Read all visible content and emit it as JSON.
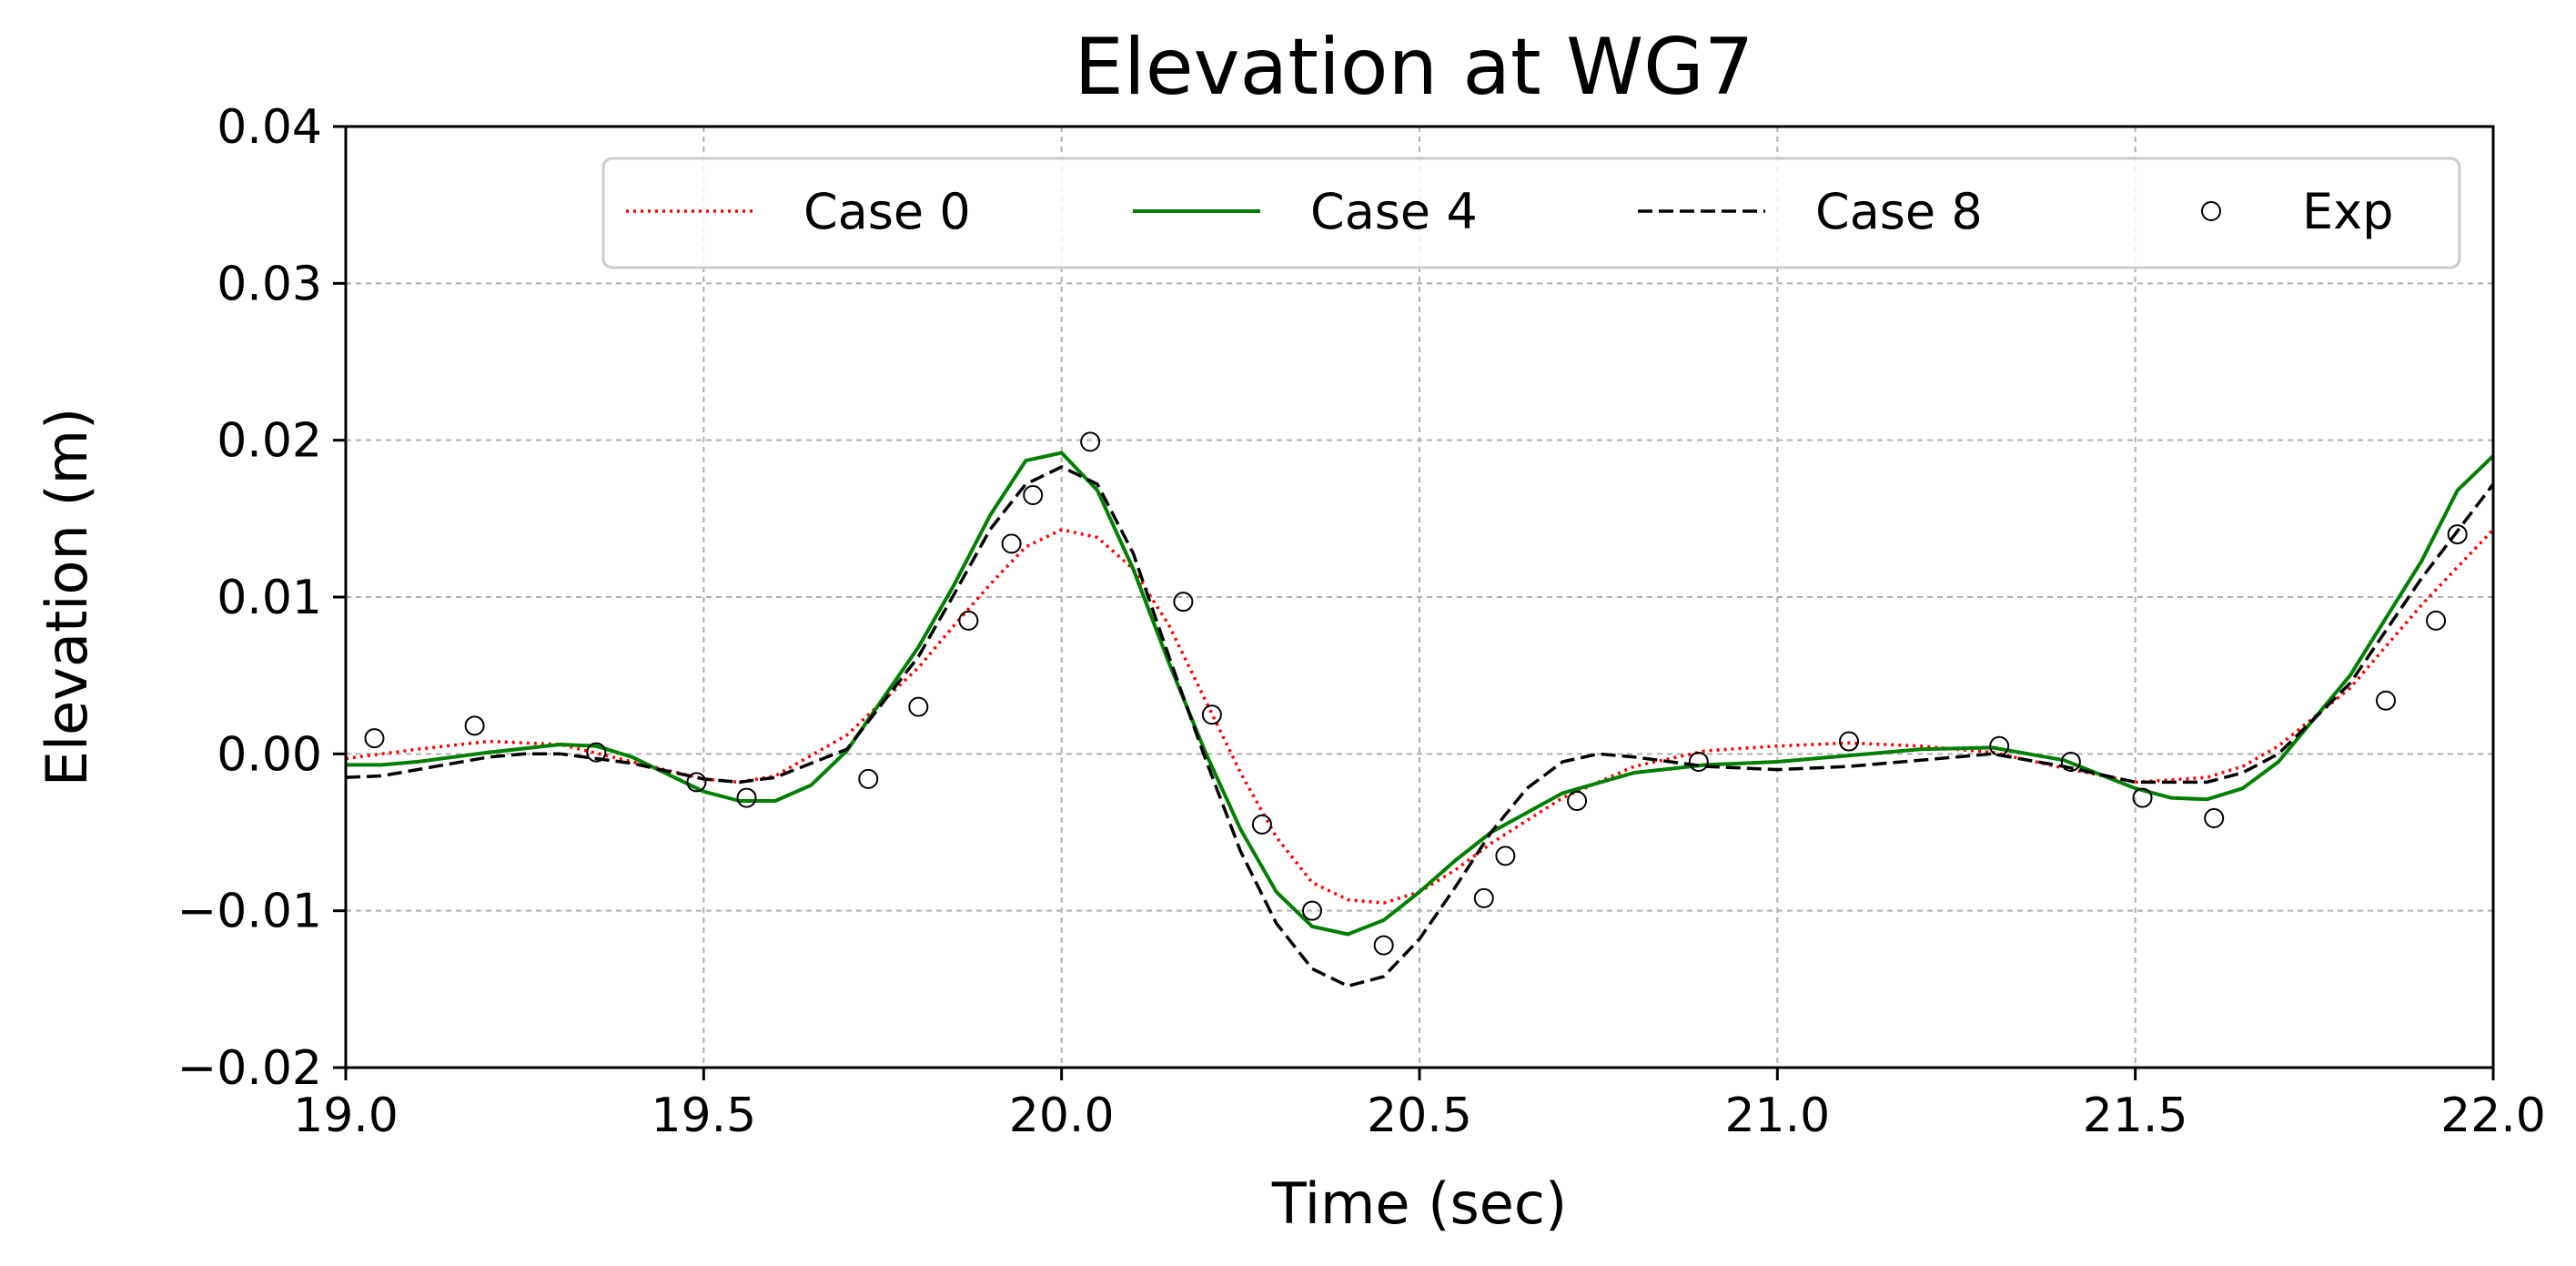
{
  "chart_data": {
    "type": "line",
    "title": "Elevation at WG7",
    "xlabel": "Time (sec)",
    "ylabel": "Elevation (m)",
    "xlim": [
      19.0,
      22.0
    ],
    "ylim": [
      -0.02,
      0.04
    ],
    "xticks": [
      19.0,
      19.5,
      20.0,
      20.5,
      21.0,
      21.5,
      22.0
    ],
    "xtick_labels": [
      "19.0",
      "19.5",
      "20.0",
      "20.5",
      "21.0",
      "21.5",
      "22.0"
    ],
    "yticks": [
      -0.02,
      -0.01,
      0.0,
      0.01,
      0.02,
      0.03,
      0.04
    ],
    "ytick_labels": [
      "−0.02",
      "−0.01",
      "0.00",
      "0.01",
      "0.02",
      "0.03",
      "0.04"
    ],
    "grid": true,
    "legend_position": "top-right",
    "series": [
      {
        "name": "Case 0",
        "style": "dotted",
        "color": "#ff0000",
        "x": [
          19.0,
          19.1,
          19.2,
          19.3,
          19.4,
          19.5,
          19.55,
          19.6,
          19.7,
          19.8,
          19.85,
          19.9,
          19.95,
          20.0,
          20.05,
          20.1,
          20.15,
          20.2,
          20.25,
          20.3,
          20.35,
          20.4,
          20.45,
          20.5,
          20.55,
          20.6,
          20.7,
          20.8,
          20.9,
          21.0,
          21.1,
          21.2,
          21.3,
          21.4,
          21.5,
          21.6,
          21.65,
          21.7,
          21.8,
          21.9,
          22.0
        ],
        "y": [
          -0.0003,
          0.0003,
          0.0008,
          0.0006,
          -0.0005,
          -0.0016,
          -0.0018,
          -0.0014,
          0.0012,
          0.0055,
          0.0082,
          0.0108,
          0.0132,
          0.0143,
          0.0138,
          0.0118,
          0.0082,
          0.0035,
          -0.0012,
          -0.0053,
          -0.0082,
          -0.0093,
          -0.0095,
          -0.0088,
          -0.0074,
          -0.0057,
          -0.0028,
          -0.0008,
          0.0002,
          0.0005,
          0.0007,
          0.0005,
          0.0001,
          -0.0009,
          -0.0018,
          -0.0015,
          -0.0008,
          0.0005,
          0.0042,
          0.0095,
          0.0143
        ]
      },
      {
        "name": "Case 4",
        "style": "solid",
        "color": "#008000",
        "x": [
          19.0,
          19.05,
          19.1,
          19.2,
          19.3,
          19.35,
          19.4,
          19.5,
          19.55,
          19.6,
          19.65,
          19.7,
          19.8,
          19.85,
          19.9,
          19.95,
          20.0,
          20.05,
          20.1,
          20.15,
          20.2,
          20.25,
          20.3,
          20.35,
          20.4,
          20.45,
          20.5,
          20.55,
          20.6,
          20.7,
          20.8,
          20.9,
          21.0,
          21.1,
          21.2,
          21.3,
          21.4,
          21.5,
          21.55,
          21.6,
          21.65,
          21.7,
          21.8,
          21.9,
          21.95,
          22.0
        ],
        "y": [
          -0.0007,
          -0.0007,
          -0.0005,
          0.0001,
          0.0006,
          0.0005,
          -0.0002,
          -0.0024,
          -0.003,
          -0.003,
          -0.002,
          0.0002,
          0.0068,
          0.0108,
          0.0152,
          0.0187,
          0.0192,
          0.0168,
          0.0118,
          0.0058,
          0.0002,
          -0.0048,
          -0.0088,
          -0.011,
          -0.0115,
          -0.0106,
          -0.0088,
          -0.0068,
          -0.005,
          -0.0025,
          -0.0012,
          -0.0007,
          -0.0005,
          -0.0001,
          0.0003,
          0.0004,
          -0.0004,
          -0.0022,
          -0.0028,
          -0.0029,
          -0.0022,
          -0.0005,
          0.005,
          0.0123,
          0.0168,
          0.019
        ]
      },
      {
        "name": "Case 8",
        "style": "dashed",
        "color": "#000000",
        "x": [
          19.0,
          19.05,
          19.1,
          19.2,
          19.25,
          19.3,
          19.4,
          19.5,
          19.55,
          19.6,
          19.7,
          19.8,
          19.85,
          19.9,
          19.95,
          20.0,
          20.05,
          20.1,
          20.15,
          20.2,
          20.25,
          20.3,
          20.35,
          20.4,
          20.45,
          20.5,
          20.55,
          20.6,
          20.65,
          20.7,
          20.75,
          20.8,
          20.9,
          21.0,
          21.1,
          21.2,
          21.3,
          21.4,
          21.5,
          21.6,
          21.65,
          21.7,
          21.8,
          21.9,
          22.0
        ],
        "y": [
          -0.0015,
          -0.0014,
          -0.001,
          -0.0002,
          0.0,
          0.0,
          -0.0006,
          -0.0016,
          -0.0018,
          -0.0015,
          0.0003,
          0.0062,
          0.0102,
          0.0143,
          0.0172,
          0.0183,
          0.0172,
          0.0128,
          0.0062,
          -0.0002,
          -0.0062,
          -0.0108,
          -0.0137,
          -0.0148,
          -0.0142,
          -0.0118,
          -0.0085,
          -0.005,
          -0.0022,
          -0.0005,
          0.0,
          -0.0002,
          -0.0008,
          -0.001,
          -0.0008,
          -0.0004,
          0.0,
          -0.0008,
          -0.0018,
          -0.0018,
          -0.0012,
          0.0,
          0.0045,
          0.0112,
          0.0172
        ]
      },
      {
        "name": "Exp",
        "style": "markers",
        "color": "#000000",
        "x": [
          19.04,
          19.18,
          19.35,
          19.49,
          19.56,
          19.73,
          19.8,
          19.87,
          19.93,
          19.96,
          20.04,
          20.17,
          20.21,
          20.28,
          20.35,
          20.45,
          20.59,
          20.62,
          20.72,
          20.89,
          21.1,
          21.31,
          21.41,
          21.51,
          21.61,
          21.85,
          21.92,
          21.95
        ],
        "y": [
          0.001,
          0.0018,
          0.0001,
          -0.0018,
          -0.0028,
          -0.0016,
          0.003,
          0.0085,
          0.0134,
          0.0165,
          0.0199,
          0.0097,
          0.0025,
          -0.0045,
          -0.01,
          -0.0122,
          -0.0092,
          -0.0065,
          -0.003,
          -0.0005,
          0.0008,
          0.0005,
          -0.0005,
          -0.0028,
          -0.0041,
          0.0034,
          0.0085,
          0.014
        ]
      }
    ]
  }
}
